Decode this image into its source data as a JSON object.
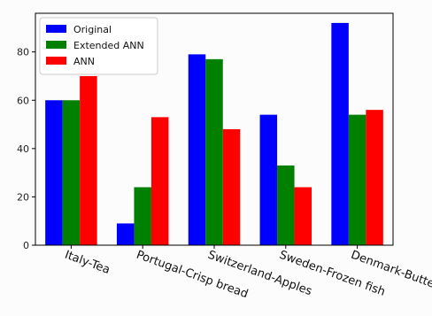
{
  "chart_data": {
    "type": "bar",
    "categories": [
      "Italy-Tea",
      "Portugal-Crisp bread",
      "Switzerland-Apples",
      "Sweden-Frozen fish",
      "Denmark-Butter"
    ],
    "series": [
      {
        "name": "Original",
        "color": "#0000ff",
        "values": [
          60,
          9,
          79,
          54,
          92
        ]
      },
      {
        "name": "Extended ANN",
        "color": "#008000",
        "values": [
          60,
          24,
          77,
          33,
          54
        ]
      },
      {
        "name": "ANN",
        "color": "#ff0000",
        "values": [
          70,
          53,
          48,
          24,
          56
        ]
      }
    ],
    "yticks": [
      "0",
      "20",
      "40",
      "60",
      "80"
    ],
    "ylim": [
      0,
      96
    ],
    "legend": "top-left",
    "grid": false,
    "title": "",
    "xlabel": "",
    "ylabel": ""
  }
}
